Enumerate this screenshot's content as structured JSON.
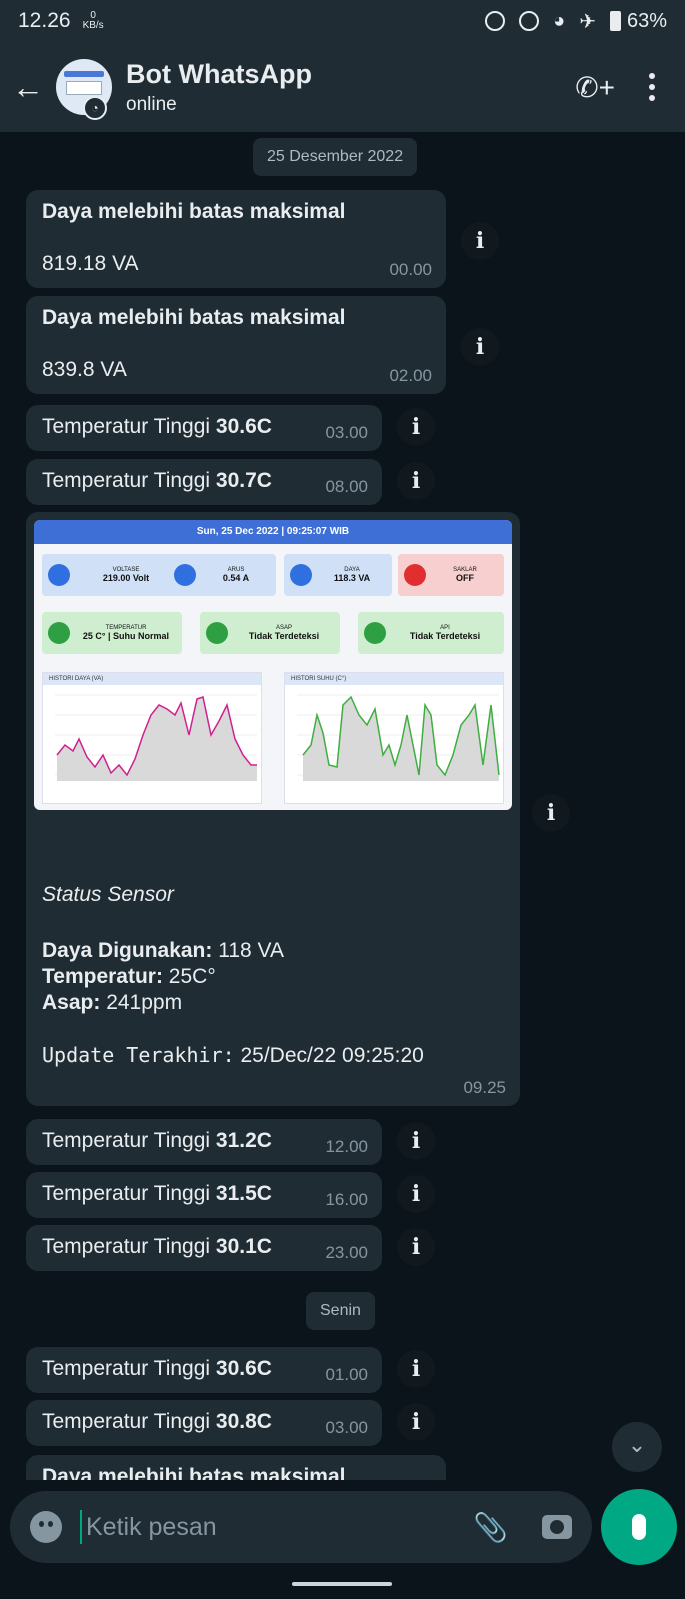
{
  "status_bar": {
    "time": "12.26",
    "speed_value": "0",
    "speed_unit": "KB/s",
    "battery": "63%"
  },
  "header": {
    "title": "Bot WhatsApp",
    "subtitle": "online"
  },
  "chat": {
    "date1": "25 Desember 2022",
    "msg1": {
      "title": "Daya melebihi batas maksimal",
      "value": "819.18 VA",
      "time": "00.00"
    },
    "msg2": {
      "title": "Daya melebihi batas maksimal",
      "value": "839.8 VA",
      "time": "02.00"
    },
    "temp_prefix": "Temperatur Tinggi ",
    "temps_a": [
      {
        "value": "30.6C",
        "time": "03.00"
      },
      {
        "value": "30.7C",
        "time": "08.00"
      }
    ],
    "image_msg": {
      "dash_header": "Sun, 25 Dec 2022 | 09:25:07 WIB",
      "cards": [
        {
          "label": "VOLTASE",
          "value": "219.00 Volt"
        },
        {
          "label": "ARUS",
          "value": "0.54 A"
        },
        {
          "label": "DAYA",
          "value": "118.3 VA"
        },
        {
          "label": "SAKLAR",
          "value": "OFF"
        },
        {
          "label": "TEMPERATUR",
          "value": "25 C° | Suhu Normal"
        },
        {
          "label": "ASAP",
          "value": "Tidak Terdeteksi"
        },
        {
          "label": "API",
          "value": "Tidak Terdeteksi"
        }
      ],
      "panels": [
        {
          "title": "HISTORI DAYA (VA)"
        },
        {
          "title": "HISTORI SUHU (C°)"
        }
      ],
      "status_title": "Status Sensor",
      "daya_label": "Daya Digunakan:",
      "daya_value": " 118 VA",
      "temp_label": "Temperatur:",
      "temp_value": " 25C°",
      "asap_label": "Asap:",
      "asap_value": " 241ppm",
      "update_label": "Update Terakhir:",
      "update_value": " 25/Dec/22 09:25:20",
      "time": "09.25"
    },
    "temps_b": [
      {
        "value": "31.2C",
        "time": "12.00"
      },
      {
        "value": "31.5C",
        "time": "16.00"
      },
      {
        "value": "30.1C",
        "time": "23.00"
      }
    ],
    "date2": "Senin",
    "temps_c": [
      {
        "value": "30.6C",
        "time": "01.00"
      },
      {
        "value": "30.8C",
        "time": "03.00"
      }
    ],
    "msg_last_title": "Daya melebihi batas maksimal"
  },
  "input": {
    "placeholder": "Ketik pesan"
  },
  "colors": {
    "accent": "#00a884",
    "bubble": "#1f2c34",
    "background": "#0b141a"
  }
}
